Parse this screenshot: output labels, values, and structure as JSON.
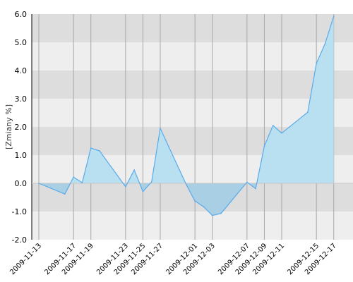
{
  "chart_data": {
    "type": "area",
    "ylabel": "[Zmiany %]",
    "ylim": [
      -2.0,
      6.0
    ],
    "y_ticks": [
      "-2.0",
      "-1.0",
      "0.0",
      "1.0",
      "2.0",
      "3.0",
      "4.0",
      "5.0",
      "6.0"
    ],
    "x_tick_labels": [
      "2009-11-13",
      "2009-11-17",
      "2009-11-19",
      "2009-11-23",
      "2009-11-25",
      "2009-11-27",
      "2009-12-01",
      "2009-12-03",
      "2009-12-07",
      "2009-12-09",
      "2009-12-11",
      "2009-12-15",
      "2009-12-17"
    ],
    "x": [
      "2009-11-13",
      "2009-11-16",
      "2009-11-17",
      "2009-11-18",
      "2009-11-19",
      "2009-11-20",
      "2009-11-23",
      "2009-11-24",
      "2009-11-25",
      "2009-11-26",
      "2009-11-27",
      "2009-11-30",
      "2009-12-01",
      "2009-12-02",
      "2009-12-03",
      "2009-12-04",
      "2009-12-07",
      "2009-12-08",
      "2009-12-09",
      "2009-12-10",
      "2009-12-11",
      "2009-12-14",
      "2009-12-15",
      "2009-12-16",
      "2009-12-17",
      "2009-12-18"
    ],
    "values": [
      0.0,
      -0.38,
      0.22,
      0.02,
      1.25,
      1.15,
      -0.12,
      0.47,
      -0.29,
      0.05,
      1.95,
      -0.05,
      -0.63,
      -0.83,
      -1.14,
      -1.07,
      0.04,
      -0.19,
      1.32,
      2.05,
      1.78,
      2.52,
      4.25,
      4.95,
      5.92,
      null
    ],
    "grid": true,
    "colors": {
      "line": "#5aaaea",
      "fill_above": "#b8e0f0",
      "fill_below": "#a8cfe4",
      "band_dark": "#dddddd",
      "band_light": "#eeeeee",
      "grid": "#a8a8a8",
      "text": "#000000"
    }
  }
}
